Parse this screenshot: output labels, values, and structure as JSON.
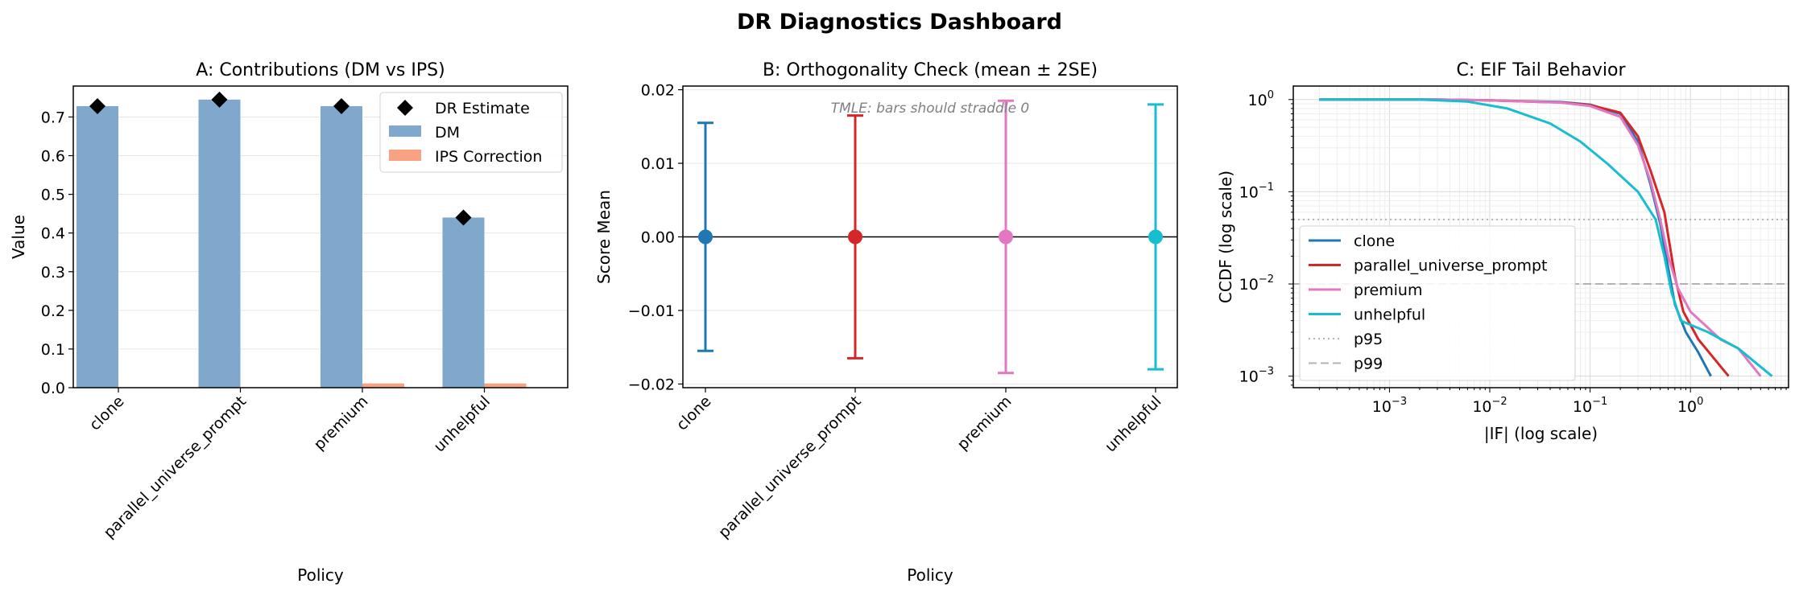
{
  "suptitle": "DR Diagnostics Dashboard",
  "chart_data": [
    {
      "type": "bar",
      "title": "A: Contributions (DM vs IPS)",
      "xlabel": "Policy",
      "ylabel": "Value",
      "ylim": [
        0,
        0.78
      ],
      "yticks": [
        "0.0",
        "0.1",
        "0.2",
        "0.3",
        "0.4",
        "0.5",
        "0.6",
        "0.7"
      ],
      "categories": [
        "clone",
        "parallel_universe_prompt",
        "premium",
        "unhelpful"
      ],
      "series": [
        {
          "name": "DM",
          "color": "#7fa8cc",
          "values": [
            0.728,
            0.745,
            0.728,
            0.44
          ]
        },
        {
          "name": "IPS Correction",
          "color": "#f9a282",
          "values": [
            0.0,
            0.0,
            0.011,
            0.011
          ]
        }
      ],
      "markers": {
        "name": "DR Estimate",
        "color": "#000000",
        "shape": "diamond",
        "values": [
          0.728,
          0.745,
          0.728,
          0.44
        ]
      },
      "legend": "top-right",
      "grid": "y"
    },
    {
      "type": "errorbar",
      "title": "B: Orthogonality Check (mean ± 2SE)",
      "xlabel": "Policy",
      "ylabel": "Score Mean",
      "ylim": [
        -0.0205,
        0.0205
      ],
      "yticks": [
        "−0.02",
        "−0.01",
        "0.00",
        "0.01",
        "0.02"
      ],
      "categories": [
        "clone",
        "parallel_universe_prompt",
        "premium",
        "unhelpful"
      ],
      "means": [
        0.0,
        0.0,
        0.0,
        0.0
      ],
      "errors": [
        0.0155,
        0.0165,
        0.0185,
        0.018
      ],
      "colors": [
        "#1f77b4",
        "#d62728",
        "#e377c2",
        "#17becf"
      ],
      "annotation": "TMLE: bars should straddle 0",
      "zero_line": true,
      "grid": "y"
    },
    {
      "type": "line",
      "title": "C: EIF Tail Behavior",
      "xlabel": "|IF| (log scale)",
      "ylabel": "CCDF (log scale)",
      "xscale": "log",
      "yscale": "log",
      "xlim": [
        0.00011,
        9.5
      ],
      "ylim": [
        0.00075,
        1.4
      ],
      "xticks": [
        {
          "v": 0.001,
          "t": "10",
          "e": "−3"
        },
        {
          "v": 0.01,
          "t": "10",
          "e": "−2"
        },
        {
          "v": 0.1,
          "t": "10",
          "e": "−1"
        },
        {
          "v": 1,
          "t": "10",
          "e": "0"
        }
      ],
      "yticks": [
        {
          "v": 0.001,
          "t": "10",
          "e": "−3"
        },
        {
          "v": 0.01,
          "t": "10",
          "e": "−2"
        },
        {
          "v": 0.1,
          "t": "10",
          "e": "−1"
        },
        {
          "v": 1,
          "t": "10",
          "e": "0"
        }
      ],
      "series": [
        {
          "name": "clone",
          "color": "#1f77b4",
          "points": [
            [
              0.0002,
              1
            ],
            [
              0.003,
              1
            ],
            [
              0.01,
              0.98
            ],
            [
              0.05,
              0.94
            ],
            [
              0.1,
              0.88
            ],
            [
              0.2,
              0.7
            ],
            [
              0.3,
              0.35
            ],
            [
              0.4,
              0.12
            ],
            [
              0.5,
              0.045
            ],
            [
              0.6,
              0.015
            ],
            [
              0.7,
              0.006
            ],
            [
              0.9,
              0.003
            ],
            [
              1.2,
              0.0018
            ],
            [
              1.6,
              0.001
            ]
          ]
        },
        {
          "name": "parallel_universe_prompt",
          "color": "#d62728",
          "points": [
            [
              0.0002,
              1
            ],
            [
              0.003,
              1
            ],
            [
              0.01,
              0.98
            ],
            [
              0.05,
              0.93
            ],
            [
              0.1,
              0.87
            ],
            [
              0.2,
              0.72
            ],
            [
              0.3,
              0.4
            ],
            [
              0.4,
              0.17
            ],
            [
              0.55,
              0.06
            ],
            [
              0.7,
              0.012
            ],
            [
              0.85,
              0.005
            ],
            [
              1.2,
              0.0025
            ],
            [
              2.4,
              0.001
            ]
          ]
        },
        {
          "name": "premium",
          "color": "#e377c2",
          "points": [
            [
              0.0002,
              1
            ],
            [
              0.003,
              1
            ],
            [
              0.01,
              0.98
            ],
            [
              0.05,
              0.93
            ],
            [
              0.1,
              0.85
            ],
            [
              0.2,
              0.65
            ],
            [
              0.3,
              0.32
            ],
            [
              0.4,
              0.13
            ],
            [
              0.5,
              0.05
            ],
            [
              0.6,
              0.02
            ],
            [
              0.75,
              0.009
            ],
            [
              1,
              0.005
            ],
            [
              2,
              0.0025
            ],
            [
              3,
              0.002
            ],
            [
              5,
              0.001
            ]
          ]
        },
        {
          "name": "unhelpful",
          "color": "#17becf",
          "points": [
            [
              0.0002,
              1
            ],
            [
              0.002,
              1
            ],
            [
              0.006,
              0.95
            ],
            [
              0.015,
              0.8
            ],
            [
              0.04,
              0.55
            ],
            [
              0.08,
              0.35
            ],
            [
              0.15,
              0.2
            ],
            [
              0.3,
              0.1
            ],
            [
              0.45,
              0.05
            ],
            [
              0.55,
              0.02
            ],
            [
              0.65,
              0.008
            ],
            [
              0.8,
              0.004
            ],
            [
              1.5,
              0.003
            ],
            [
              3,
              0.002
            ],
            [
              6.5,
              0.001
            ]
          ]
        }
      ],
      "reference_lines": [
        {
          "name": "p95",
          "value": 0.05,
          "style": "dotted",
          "color": "#b3b3b3"
        },
        {
          "name": "p99",
          "value": 0.01,
          "style": "dashed",
          "color": "#b3b3b3"
        }
      ],
      "legend": "lower-left",
      "grid": "both (major and minor)"
    }
  ]
}
